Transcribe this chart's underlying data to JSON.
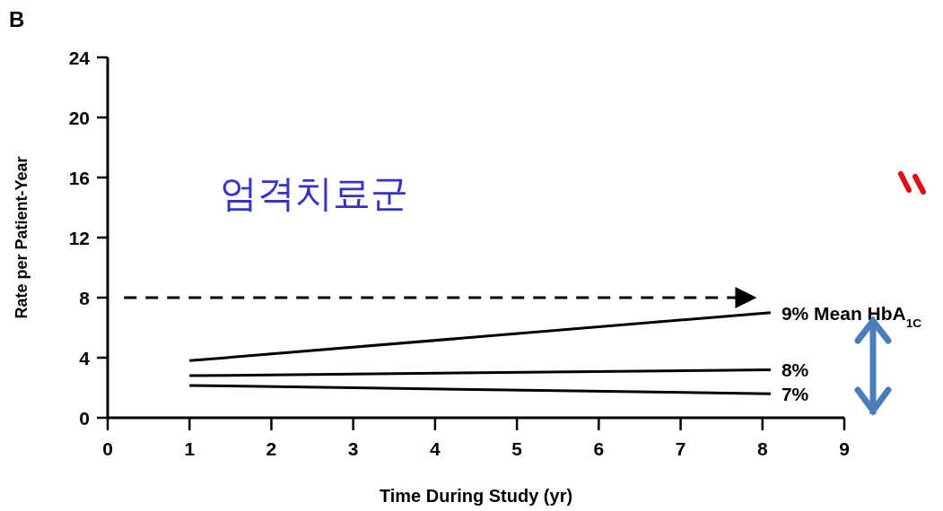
{
  "chart_data": {
    "type": "line",
    "xlabel": "Time During Study (yr)",
    "ylabel": "Rate per Patient-Year",
    "annotations": [
      "B",
      "엄격치료군"
    ],
    "xlim": [
      0,
      9
    ],
    "ylim": [
      0,
      24
    ],
    "xticks": [
      0,
      1,
      2,
      3,
      4,
      5,
      6,
      7,
      8,
      9
    ],
    "yticks": [
      0,
      4,
      8,
      12,
      16,
      20,
      24
    ],
    "grid": false,
    "legend": false,
    "marker": "none",
    "line_style": "solid",
    "series": [
      {
        "name": "9% Mean HbA$_{1C}$",
        "color": "#000000",
        "x": [
          1,
          8.1
        ],
        "values": [
          3.8,
          7.0
        ]
      },
      {
        "name": "8%",
        "color": "#000000",
        "x": [
          1,
          8.1
        ],
        "values": [
          2.8,
          3.2
        ]
      },
      {
        "name": "7%",
        "color": "#000000",
        "x": [
          1,
          3,
          5.5,
          8.1
        ],
        "values": [
          2.15,
          2.0,
          1.8,
          1.6
        ]
      },
      {
        "color": "#000000",
        "line_style": "dashed",
        "x": [
          0.2,
          7.7
        ],
        "values": [
          8,
          8
        ]
      }
    ]
  }
}
